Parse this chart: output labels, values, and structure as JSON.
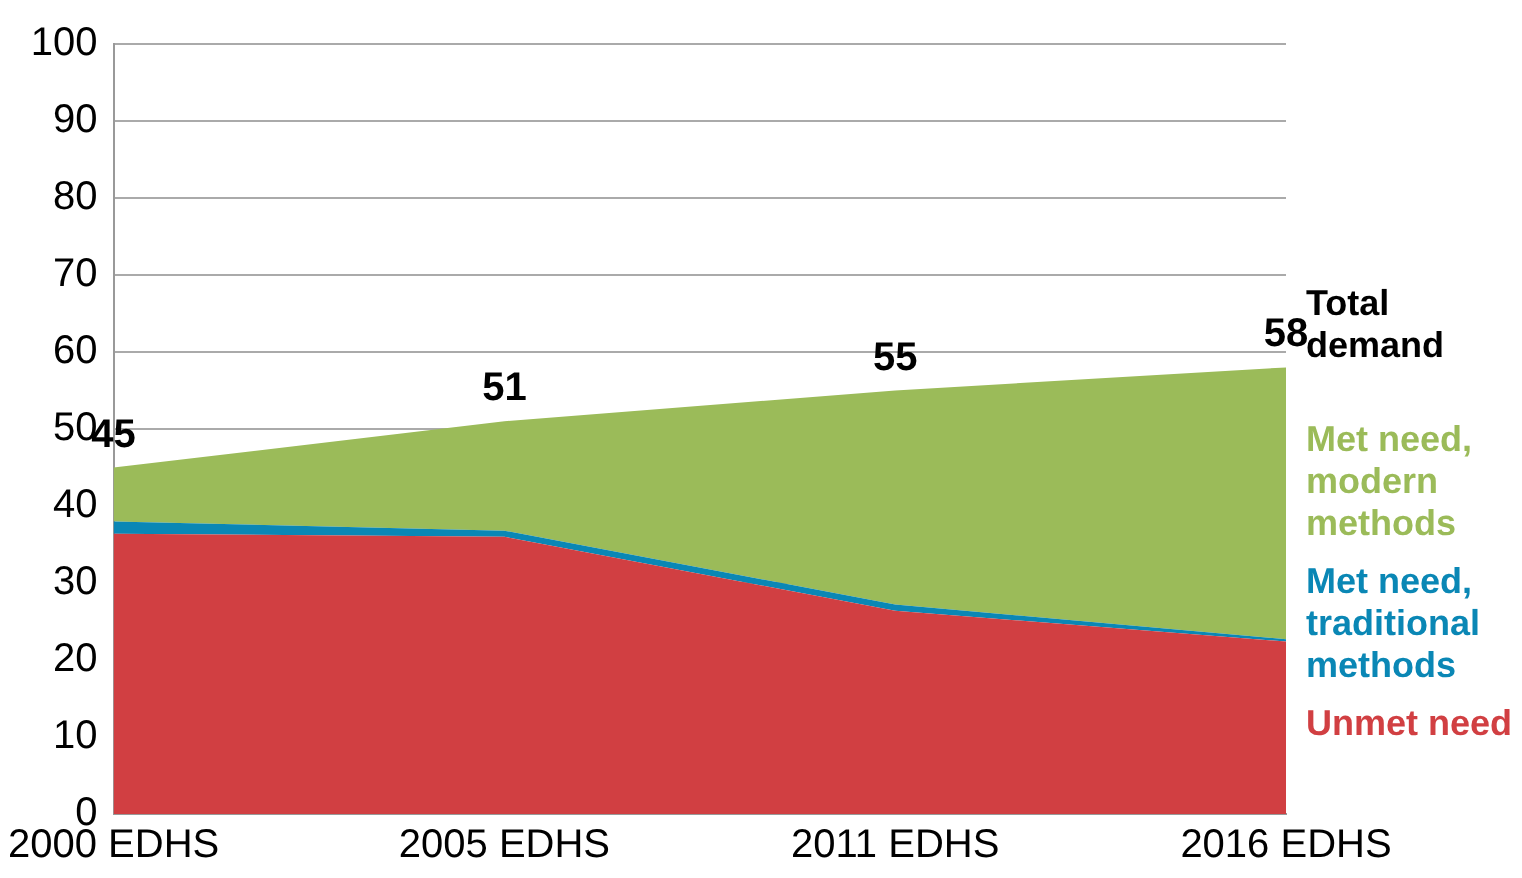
{
  "chart_data": {
    "type": "area",
    "stacked": true,
    "categories": [
      "2000 EDHS",
      "2005 EDHS",
      "2011 EDHS",
      "2016 EDHS"
    ],
    "series": [
      {
        "name": "Unmet need",
        "color": "#d13f42",
        "values": [
          36.4,
          36,
          26.4,
          22.4
        ]
      },
      {
        "name": "Met need, traditional methods",
        "color": "#0a87b5",
        "values": [
          1.6,
          0.8,
          0.8,
          0.3
        ]
      },
      {
        "name": "Met need, modern methods",
        "color": "#9bbb59",
        "values": [
          7,
          14.2,
          27.8,
          35.3
        ]
      }
    ],
    "totals": [
      "45",
      "51",
      "55",
      "58"
    ],
    "annotations": [
      "Total demand"
    ],
    "ylim": [
      0,
      100
    ],
    "yticks": [
      0,
      10,
      20,
      30,
      40,
      50,
      60,
      70,
      80,
      90,
      100
    ],
    "grid": "y",
    "legend": false
  }
}
